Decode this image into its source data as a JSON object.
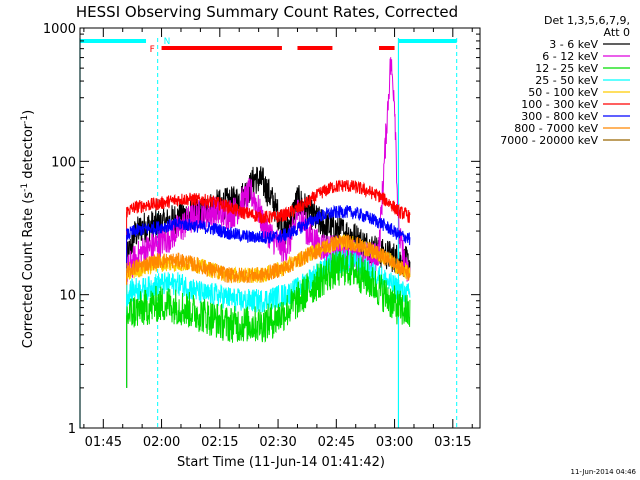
{
  "chart_data": {
    "type": "line",
    "title": "HESSI Observing Summary Count Rates, Corrected",
    "xlabel": "Start Time (11-Jun-14 01:41:42)",
    "ylabel": "Corrected Count Rate (s",
    "ylabel_sup": "-1",
    "ylabel_mid": " detector",
    "ylabel_end": ")",
    "yscale": "log",
    "ylim": [
      1,
      1000
    ],
    "xlim": [
      "01:39",
      "03:22"
    ],
    "x_ticks": [
      "01:45",
      "02:00",
      "02:15",
      "02:30",
      "02:45",
      "03:00",
      "03:15"
    ],
    "y_ticks": [
      "1",
      "10",
      "100",
      "1000"
    ],
    "timestamp": "11-Jun-2014 04:46",
    "legend": {
      "placement": "right",
      "header": [
        "Det 1,3,5,6,7,9,",
        "Att 0"
      ],
      "entries": [
        {
          "label": "3 - 6 keV",
          "color": "#000000"
        },
        {
          "label": "6 - 12 keV",
          "color": "#dd00dd"
        },
        {
          "label": "12 - 25 keV",
          "color": "#00dd00"
        },
        {
          "label": "25 - 50 keV",
          "color": "#00ffff"
        },
        {
          "label": "50 - 100 keV",
          "color": "#ffcc00"
        },
        {
          "label": "100 - 300 keV",
          "color": "#ff0000"
        },
        {
          "label": "300 - 800 keV",
          "color": "#0000ff"
        },
        {
          "label": "800 - 7000 keV",
          "color": "#ff8800"
        },
        {
          "label": "7000 - 20000 keV",
          "color": "#996600"
        }
      ]
    },
    "annotations": {
      "flag_letters": [
        {
          "text": "F",
          "at": "01:59",
          "color": "#ff0000"
        },
        {
          "text": "N",
          "at": "01:59.5",
          "color": "#00ffff"
        }
      ],
      "night_bars": [
        [
          "01:39",
          "01:56"
        ],
        [
          "03:01",
          "03:16"
        ]
      ],
      "flare_bars": [
        [
          "02:00",
          "02:31"
        ],
        [
          "02:35",
          "02:44"
        ],
        [
          "02:56",
          "03:00"
        ]
      ],
      "saa_bars_color": "#00ffff",
      "flare_bars_color": "#ff0000",
      "dashed_vlines": [
        "01:59",
        "03:16"
      ],
      "solid_vlines": [
        "01:39",
        "03:01"
      ]
    },
    "series": [
      {
        "name": "3 - 6 keV",
        "color": "#000000",
        "x": [
          "01:51",
          "01:53",
          "01:55",
          "01:58",
          "02:01",
          "02:04",
          "02:07",
          "02:10",
          "02:13",
          "02:16",
          "02:19",
          "02:21",
          "02:23",
          "02:24",
          "02:26",
          "02:28",
          "02:30",
          "02:32",
          "02:34",
          "02:35",
          "02:36",
          "02:38",
          "02:40",
          "02:43",
          "02:46",
          "02:49",
          "02:52",
          "02:55",
          "02:57",
          "02:58",
          "03:00",
          "03:02",
          "03:04"
        ],
        "y": [
          18,
          28,
          32,
          33,
          34,
          38,
          40,
          40,
          46,
          48,
          50,
          55,
          65,
          75,
          70,
          55,
          40,
          30,
          42,
          52,
          48,
          42,
          36,
          32,
          30,
          28,
          24,
          22,
          20,
          20,
          19,
          18,
          17
        ],
        "noise": 0.12
      },
      {
        "name": "6 - 12 keV",
        "color": "#dd00dd",
        "x": [
          "01:51",
          "01:53",
          "01:55",
          "01:58",
          "02:01",
          "02:04",
          "02:07",
          "02:10",
          "02:13",
          "02:16",
          "02:19",
          "02:21",
          "02:23",
          "02:24",
          "02:26",
          "02:28",
          "02:30",
          "02:32",
          "02:34",
          "02:35",
          "02:36",
          "02:38",
          "02:40",
          "02:43",
          "02:46",
          "02:49",
          "02:52",
          "02:55",
          "02:56",
          "02:58",
          "02:59",
          "03:00",
          "03:01",
          "03:03",
          "03:04"
        ],
        "y": [
          15,
          18,
          21,
          23,
          26,
          30,
          36,
          40,
          42,
          40,
          42,
          50,
          58,
          52,
          35,
          28,
          24,
          22,
          30,
          42,
          38,
          28,
          24,
          22,
          21,
          20,
          19,
          19,
          22,
          200,
          560,
          300,
          30,
          15,
          14
        ],
        "noise": 0.12
      },
      {
        "name": "100 - 300 keV",
        "color": "#ff0000",
        "x": [
          "01:51",
          "01:53",
          "01:56",
          "01:59",
          "02:02",
          "02:05",
          "02:08",
          "02:11",
          "02:14",
          "02:17",
          "02:20",
          "02:23",
          "02:26",
          "02:29",
          "02:32",
          "02:35",
          "02:38",
          "02:41",
          "02:44",
          "02:47",
          "02:50",
          "02:53",
          "02:56",
          "02:59",
          "03:01",
          "03:03",
          "03:04"
        ],
        "y": [
          42,
          45,
          47,
          48,
          50,
          52,
          52,
          51,
          49,
          46,
          42,
          40,
          38,
          38,
          40,
          44,
          50,
          58,
          64,
          66,
          64,
          60,
          55,
          48,
          42,
          40,
          38
        ],
        "noise": 0.05
      },
      {
        "name": "300 - 800 keV",
        "color": "#0000ff",
        "x": [
          "01:51",
          "01:53",
          "01:56",
          "01:59",
          "02:02",
          "02:05",
          "02:08",
          "02:11",
          "02:14",
          "02:17",
          "02:20",
          "02:23",
          "02:26",
          "02:29",
          "02:32",
          "02:35",
          "02:38",
          "02:41",
          "02:44",
          "02:47",
          "02:50",
          "02:53",
          "02:56",
          "02:59",
          "03:01",
          "03:03",
          "03:04"
        ],
        "y": [
          28,
          30,
          31,
          32,
          33,
          34,
          33,
          32,
          31,
          29,
          28,
          27,
          27,
          27,
          28,
          31,
          35,
          39,
          41,
          42,
          41,
          38,
          35,
          31,
          28,
          27,
          26
        ],
        "noise": 0.05
      },
      {
        "name": "50 - 100 keV",
        "color": "#ffcc00",
        "x": [
          "01:51",
          "01:53",
          "01:56",
          "01:59",
          "02:02",
          "02:05",
          "02:08",
          "02:11",
          "02:14",
          "02:17",
          "02:20",
          "02:23",
          "02:26",
          "02:29",
          "02:32",
          "02:35",
          "02:38",
          "02:41",
          "02:44",
          "02:47",
          "02:50",
          "02:53",
          "02:56",
          "02:59",
          "03:01",
          "03:03",
          "03:04"
        ],
        "y": [
          14,
          15,
          16,
          17,
          17,
          17,
          17,
          16,
          15,
          14,
          14,
          14,
          14,
          15,
          16,
          18,
          20,
          22,
          24,
          25,
          24,
          22,
          20,
          18,
          16,
          15,
          14
        ],
        "noise": 0.06
      },
      {
        "name": "800 - 7000 keV",
        "color": "#ff8800",
        "x": [
          "01:51",
          "01:53",
          "01:56",
          "01:59",
          "02:02",
          "02:05",
          "02:08",
          "02:11",
          "02:14",
          "02:17",
          "02:20",
          "02:23",
          "02:26",
          "02:29",
          "02:32",
          "02:35",
          "02:38",
          "02:41",
          "02:44",
          "02:47",
          "02:50",
          "02:53",
          "02:56",
          "02:59",
          "03:01",
          "03:03",
          "03:04"
        ],
        "y": [
          15,
          16,
          17,
          18,
          18,
          18,
          17,
          16,
          15,
          14,
          14,
          14,
          14,
          15,
          16,
          18,
          20,
          22,
          24,
          25,
          24,
          22,
          20,
          18,
          16,
          15,
          14
        ],
        "noise": 0.06
      },
      {
        "name": "25 - 50 keV",
        "color": "#00ffff",
        "x": [
          "01:51",
          "01:53",
          "01:56",
          "01:59",
          "02:02",
          "02:05",
          "02:08",
          "02:11",
          "02:14",
          "02:17",
          "02:20",
          "02:23",
          "02:26",
          "02:29",
          "02:32",
          "02:35",
          "02:38",
          "02:41",
          "02:44",
          "02:47",
          "02:50",
          "02:53",
          "02:56",
          "02:59",
          "03:01",
          "03:03",
          "03:04"
        ],
        "y": [
          10,
          11,
          11,
          12,
          12,
          12,
          11,
          10,
          10,
          9.5,
          9,
          9,
          9,
          9.5,
          10,
          11,
          13,
          15,
          17,
          18,
          17,
          15,
          14,
          12,
          11,
          10,
          10
        ],
        "noise": 0.09
      },
      {
        "name": "12 - 25 keV",
        "color": "#00dd00",
        "x": [
          "01:51",
          "01:53",
          "01:56",
          "01:59",
          "02:02",
          "02:05",
          "02:08",
          "02:11",
          "02:14",
          "02:17",
          "02:20",
          "02:23",
          "02:26",
          "02:29",
          "02:32",
          "02:35",
          "02:38",
          "02:41",
          "02:44",
          "02:47",
          "02:50",
          "02:53",
          "02:56",
          "02:59",
          "03:01",
          "03:03",
          "03:04"
        ],
        "y": [
          7,
          7.5,
          8,
          8.5,
          8.5,
          8,
          7.5,
          7,
          6.5,
          6,
          6,
          6,
          6,
          6.5,
          7.5,
          9,
          11,
          13,
          15,
          16,
          15,
          13,
          11,
          9,
          8,
          7.5,
          7
        ],
        "noise": 0.14
      },
      {
        "name": "7000 - 20000 keV",
        "color": "#996600",
        "x": [],
        "y": [],
        "noise": 0
      }
    ]
  }
}
